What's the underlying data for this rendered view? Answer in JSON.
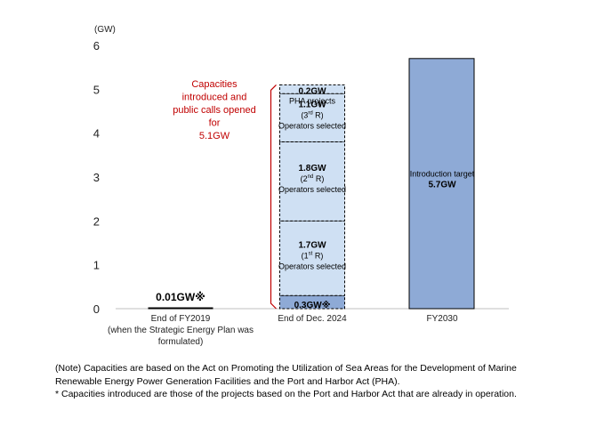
{
  "chart_data": {
    "type": "bar",
    "unit": "(GW)",
    "ylim": [
      0,
      6
    ],
    "yticks": [
      "0",
      "1",
      "2",
      "3",
      "4",
      "5",
      "6"
    ],
    "grid": false,
    "categories": [
      [
        "End of FY2019",
        "(when the Strategic Energy Plan was",
        "formulated)"
      ],
      [
        "End of Dec. 2024"
      ],
      [
        "FY2030"
      ]
    ],
    "bars": [
      {
        "category": 0,
        "value": 0.01,
        "label": "0.01GW※"
      },
      {
        "category": 1,
        "stacked": true,
        "segments": [
          {
            "value": 0.3,
            "lines": [
              "0.3GW※"
            ]
          },
          {
            "value": 1.7,
            "lines": [
              "1.7GW",
              "(1st R)",
              "Operators selected"
            ]
          },
          {
            "value": 1.8,
            "lines": [
              "1.8GW",
              "(2nd R)",
              "Operators selected"
            ]
          },
          {
            "value": 1.1,
            "lines": [
              "1.1GW",
              "(3rd R)",
              "Operators selected"
            ]
          },
          {
            "value": 0.2,
            "lines": [
              "0.2GW",
              "PHA projects"
            ]
          }
        ]
      },
      {
        "category": 2,
        "value": 5.7,
        "lines": [
          "Introduction target",
          "5.7GW"
        ]
      }
    ],
    "annotation": [
      "Capacities",
      "introduced and",
      "public calls opened",
      "for",
      "5.1GW"
    ],
    "colors": {
      "operating": "#8eaad6",
      "selected": "#cfe0f3",
      "target": "#8eaad6",
      "border": "#000000",
      "annotation": "#c00000"
    }
  },
  "notes": [
    "(Note) Capacities are based on the Act on Promoting the Utilization of Sea Areas for the Development of Marine Renewable Energy Power Generation Facilities and the Port and Harbor Act (PHA).",
    "* Capacities introduced are those of the projects based on the Port and Harbor Act that are already in operation."
  ]
}
